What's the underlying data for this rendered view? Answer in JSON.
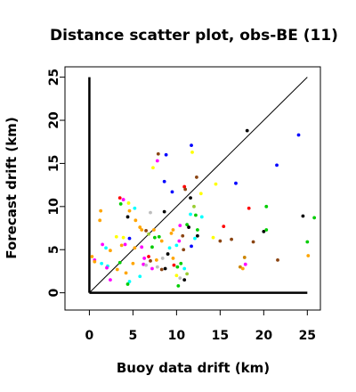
{
  "chart_data": {
    "type": "scatter",
    "title": "Distance scatter plot, obs-BE (11)",
    "xlabel": "Buoy data drift (km)",
    "ylabel": "Forecast drift (km)",
    "xlim": [
      -2.8,
      26.5
    ],
    "ylim": [
      -2,
      26.2
    ],
    "xticks": [
      "0",
      "5",
      "10",
      "15",
      "20",
      "25"
    ],
    "yticks": [
      "0",
      "5",
      "10",
      "15",
      "20",
      "25"
    ],
    "grid": false,
    "reference_line": {
      "from": [
        0,
        0
      ],
      "to": [
        25,
        25
      ]
    },
    "axis_lines": {
      "vertical_x0_top": 25,
      "horizontal_y0_right": 25
    },
    "colors": {
      "black": "#000000",
      "red": "#ff0000",
      "green": "#00cd00",
      "blue": "#0000ff",
      "cyan": "#00ffff",
      "magenta": "#ff00ff",
      "yellow": "#ffff00",
      "gray": "#bebebe",
      "darkorange": "#cd8500",
      "darkbrown": "#8b4513",
      "orange": "#ffa500",
      "olive": "#9acd32"
    },
    "points": [
      {
        "x": 18.1,
        "y": 18.8,
        "c": "black"
      },
      {
        "x": 24.0,
        "y": 18.3,
        "c": "blue"
      },
      {
        "x": 21.5,
        "y": 14.8,
        "c": "blue"
      },
      {
        "x": 11.7,
        "y": 17.1,
        "c": "blue"
      },
      {
        "x": 8.8,
        "y": 16.0,
        "c": "blue"
      },
      {
        "x": 7.9,
        "y": 16.1,
        "c": "darkbrown"
      },
      {
        "x": 7.8,
        "y": 15.3,
        "c": "magenta"
      },
      {
        "x": 11.8,
        "y": 16.3,
        "c": "yellow"
      },
      {
        "x": 7.3,
        "y": 14.5,
        "c": "yellow"
      },
      {
        "x": 12.3,
        "y": 13.4,
        "c": "darkbrown"
      },
      {
        "x": 16.8,
        "y": 12.7,
        "c": "blue"
      },
      {
        "x": 14.5,
        "y": 12.6,
        "c": "yellow"
      },
      {
        "x": 8.6,
        "y": 12.9,
        "c": "blue"
      },
      {
        "x": 10.9,
        "y": 12.3,
        "c": "red"
      },
      {
        "x": 11.0,
        "y": 12.0,
        "c": "darkbrown"
      },
      {
        "x": 9.5,
        "y": 11.7,
        "c": "blue"
      },
      {
        "x": 11.6,
        "y": 11.0,
        "c": "black"
      },
      {
        "x": 12.8,
        "y": 11.5,
        "c": "yellow"
      },
      {
        "x": 3.5,
        "y": 11.0,
        "c": "red"
      },
      {
        "x": 3.9,
        "y": 10.8,
        "c": "magenta"
      },
      {
        "x": 4.5,
        "y": 10.4,
        "c": "yellow"
      },
      {
        "x": 3.6,
        "y": 10.3,
        "c": "green"
      },
      {
        "x": 12.0,
        "y": 10.0,
        "c": "olive"
      },
      {
        "x": 18.3,
        "y": 9.8,
        "c": "red"
      },
      {
        "x": 20.3,
        "y": 10.0,
        "c": "green"
      },
      {
        "x": 1.3,
        "y": 9.5,
        "c": "orange"
      },
      {
        "x": 4.6,
        "y": 9.5,
        "c": "orange"
      },
      {
        "x": 8.6,
        "y": 9.4,
        "c": "black"
      },
      {
        "x": 7.0,
        "y": 9.3,
        "c": "gray"
      },
      {
        "x": 12.2,
        "y": 9.0,
        "c": "green"
      },
      {
        "x": 11.6,
        "y": 9.1,
        "c": "cyan"
      },
      {
        "x": 4.4,
        "y": 8.8,
        "c": "black"
      },
      {
        "x": 5.3,
        "y": 8.4,
        "c": "orange"
      },
      {
        "x": 1.2,
        "y": 8.4,
        "c": "orange"
      },
      {
        "x": 10.4,
        "y": 7.8,
        "c": "magenta"
      },
      {
        "x": 11.2,
        "y": 7.9,
        "c": "green"
      },
      {
        "x": 11.4,
        "y": 7.6,
        "c": "black"
      },
      {
        "x": 12.4,
        "y": 7.3,
        "c": "green"
      },
      {
        "x": 9.6,
        "y": 7.3,
        "c": "orange"
      },
      {
        "x": 6.0,
        "y": 7.3,
        "c": "orange"
      },
      {
        "x": 6.5,
        "y": 7.2,
        "c": "darkbrown"
      },
      {
        "x": 7.4,
        "y": 7.3,
        "c": "orange"
      },
      {
        "x": 15.4,
        "y": 7.7,
        "c": "red"
      },
      {
        "x": 20.0,
        "y": 7.1,
        "c": "black"
      },
      {
        "x": 20.3,
        "y": 7.3,
        "c": "green"
      },
      {
        "x": 3.1,
        "y": 6.5,
        "c": "yellow"
      },
      {
        "x": 3.9,
        "y": 6.4,
        "c": "yellow"
      },
      {
        "x": 4.6,
        "y": 6.3,
        "c": "blue"
      },
      {
        "x": 7.5,
        "y": 6.4,
        "c": "green"
      },
      {
        "x": 8.0,
        "y": 6.5,
        "c": "green"
      },
      {
        "x": 8.3,
        "y": 6.0,
        "c": "orange"
      },
      {
        "x": 10.3,
        "y": 6.0,
        "c": "magenta"
      },
      {
        "x": 12.1,
        "y": 6.3,
        "c": "cyan"
      },
      {
        "x": 12.4,
        "y": 6.6,
        "c": "black"
      },
      {
        "x": 14.2,
        "y": 6.4,
        "c": "yellow"
      },
      {
        "x": 15.0,
        "y": 6.0,
        "c": "darkbrown"
      },
      {
        "x": 16.3,
        "y": 6.2,
        "c": "darkbrown"
      },
      {
        "x": 18.8,
        "y": 5.9,
        "c": "darkbrown"
      },
      {
        "x": 25.0,
        "y": 5.9,
        "c": "green"
      },
      {
        "x": 1.5,
        "y": 5.6,
        "c": "magenta"
      },
      {
        "x": 1.9,
        "y": 5.2,
        "c": "cyan"
      },
      {
        "x": 2.4,
        "y": 4.9,
        "c": "orange"
      },
      {
        "x": 3.7,
        "y": 5.5,
        "c": "orange"
      },
      {
        "x": 4.1,
        "y": 5.6,
        "c": "magenta"
      },
      {
        "x": 5.2,
        "y": 5.2,
        "c": "orange"
      },
      {
        "x": 6.0,
        "y": 5.3,
        "c": "magenta"
      },
      {
        "x": 7.2,
        "y": 5.3,
        "c": "green"
      },
      {
        "x": 9.2,
        "y": 5.2,
        "c": "cyan"
      },
      {
        "x": 10.0,
        "y": 5.5,
        "c": "cyan"
      },
      {
        "x": 10.8,
        "y": 5.0,
        "c": "darkbrown"
      },
      {
        "x": 11.7,
        "y": 5.4,
        "c": "blue"
      },
      {
        "x": 0.3,
        "y": 4.2,
        "c": "orange"
      },
      {
        "x": 0.6,
        "y": 3.8,
        "c": "magenta"
      },
      {
        "x": 1.4,
        "y": 3.4,
        "c": "cyan"
      },
      {
        "x": 2.1,
        "y": 3.1,
        "c": "cyan"
      },
      {
        "x": 3.5,
        "y": 3.5,
        "c": "green"
      },
      {
        "x": 5.0,
        "y": 3.4,
        "c": "orange"
      },
      {
        "x": 6.3,
        "y": 4.0,
        "c": "magenta"
      },
      {
        "x": 6.8,
        "y": 4.2,
        "c": "red"
      },
      {
        "x": 7.0,
        "y": 3.7,
        "c": "darkbrown"
      },
      {
        "x": 7.7,
        "y": 3.8,
        "c": "orange"
      },
      {
        "x": 8.4,
        "y": 4.0,
        "c": "gray"
      },
      {
        "x": 9.0,
        "y": 4.5,
        "c": "black"
      },
      {
        "x": 9.6,
        "y": 4.0,
        "c": "orange"
      },
      {
        "x": 17.8,
        "y": 4.1,
        "c": "darkorange"
      },
      {
        "x": 21.6,
        "y": 3.8,
        "c": "darkbrown"
      },
      {
        "x": 25.1,
        "y": 4.3,
        "c": "orange"
      },
      {
        "x": 0.6,
        "y": 3.6,
        "c": "orange"
      },
      {
        "x": 2.0,
        "y": 2.9,
        "c": "magenta"
      },
      {
        "x": 2.4,
        "y": 1.5,
        "c": "magenta"
      },
      {
        "x": 3.2,
        "y": 2.7,
        "c": "orange"
      },
      {
        "x": 4.2,
        "y": 2.3,
        "c": "orange"
      },
      {
        "x": 4.6,
        "y": 1.3,
        "c": "cyan"
      },
      {
        "x": 4.4,
        "y": 1.0,
        "c": "green"
      },
      {
        "x": 5.8,
        "y": 1.9,
        "c": "cyan"
      },
      {
        "x": 6.2,
        "y": 3.3,
        "c": "magenta"
      },
      {
        "x": 6.5,
        "y": 3.2,
        "c": "gray"
      },
      {
        "x": 7.2,
        "y": 2.8,
        "c": "magenta"
      },
      {
        "x": 7.8,
        "y": 3.0,
        "c": "gray"
      },
      {
        "x": 8.3,
        "y": 2.7,
        "c": "darkbrown"
      },
      {
        "x": 8.7,
        "y": 2.8,
        "c": "black"
      },
      {
        "x": 9.7,
        "y": 3.2,
        "c": "red"
      },
      {
        "x": 10.1,
        "y": 3.0,
        "c": "green"
      },
      {
        "x": 10.5,
        "y": 3.4,
        "c": "green"
      },
      {
        "x": 10.9,
        "y": 2.8,
        "c": "cyan"
      },
      {
        "x": 10.0,
        "y": 2.0,
        "c": "yellow"
      },
      {
        "x": 10.4,
        "y": 1.7,
        "c": "gray"
      },
      {
        "x": 10.9,
        "y": 1.5,
        "c": "black"
      },
      {
        "x": 11.2,
        "y": 2.2,
        "c": "olive"
      },
      {
        "x": 10.2,
        "y": 0.8,
        "c": "green"
      },
      {
        "x": 17.3,
        "y": 3.0,
        "c": "darkorange"
      },
      {
        "x": 17.6,
        "y": 2.8,
        "c": "orange"
      },
      {
        "x": 17.9,
        "y": 3.3,
        "c": "magenta"
      },
      {
        "x": 25.8,
        "y": 8.7,
        "c": "green"
      },
      {
        "x": 24.5,
        "y": 8.9,
        "c": "black"
      },
      {
        "x": 5.2,
        "y": 9.8,
        "c": "cyan"
      },
      {
        "x": 5.8,
        "y": 7.6,
        "c": "orange"
      },
      {
        "x": 6.8,
        "y": 6.8,
        "c": "olive"
      },
      {
        "x": 9.4,
        "y": 6.9,
        "c": "orange"
      },
      {
        "x": 10.7,
        "y": 6.6,
        "c": "darkbrown"
      },
      {
        "x": 12.9,
        "y": 8.8,
        "c": "cyan"
      }
    ]
  }
}
